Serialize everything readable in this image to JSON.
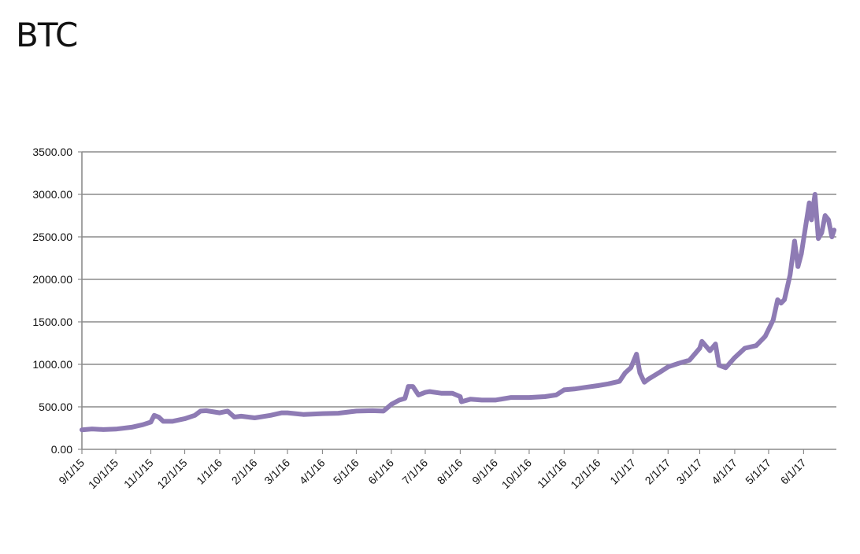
{
  "chart_data": {
    "type": "line",
    "title": "BTC",
    "xlabel": "",
    "ylabel": "",
    "ylim": [
      0,
      3500
    ],
    "yticks": [
      "0.00",
      "500.00",
      "1000.00",
      "1500.00",
      "2000.00",
      "2500.00",
      "3000.00",
      "3500.00"
    ],
    "xticks": [
      "9/1/15",
      "10/1/15",
      "11/1/15",
      "12/1/15",
      "1/1/16",
      "2/1/16",
      "3/1/16",
      "4/1/16",
      "5/1/16",
      "6/1/16",
      "7/1/16",
      "8/1/16",
      "9/1/16",
      "10/1/16",
      "11/1/16",
      "12/1/16",
      "1/1/17",
      "2/1/17",
      "3/1/17",
      "4/1/17",
      "5/1/17",
      "6/1/17"
    ],
    "grid": "horizontal",
    "series": [
      {
        "color": "#8e7bb4",
        "points": [
          [
            "2015-09-01",
            230
          ],
          [
            "2015-09-10",
            240
          ],
          [
            "2015-09-20",
            232
          ],
          [
            "2015-10-01",
            238
          ],
          [
            "2015-10-15",
            260
          ],
          [
            "2015-10-25",
            290
          ],
          [
            "2015-11-01",
            320
          ],
          [
            "2015-11-04",
            400
          ],
          [
            "2015-11-08",
            380
          ],
          [
            "2015-11-12",
            330
          ],
          [
            "2015-11-20",
            330
          ],
          [
            "2015-12-01",
            360
          ],
          [
            "2015-12-10",
            400
          ],
          [
            "2015-12-15",
            450
          ],
          [
            "2015-12-20",
            455
          ],
          [
            "2016-01-01",
            430
          ],
          [
            "2016-01-08",
            450
          ],
          [
            "2016-01-14",
            380
          ],
          [
            "2016-01-20",
            390
          ],
          [
            "2016-02-01",
            370
          ],
          [
            "2016-02-15",
            400
          ],
          [
            "2016-02-25",
            430
          ],
          [
            "2016-03-01",
            430
          ],
          [
            "2016-03-15",
            410
          ],
          [
            "2016-04-01",
            420
          ],
          [
            "2016-04-15",
            425
          ],
          [
            "2016-05-01",
            450
          ],
          [
            "2016-05-15",
            455
          ],
          [
            "2016-05-25",
            450
          ],
          [
            "2016-06-01",
            530
          ],
          [
            "2016-06-08",
            580
          ],
          [
            "2016-06-13",
            600
          ],
          [
            "2016-06-16",
            740
          ],
          [
            "2016-06-20",
            740
          ],
          [
            "2016-06-25",
            640
          ],
          [
            "2016-07-01",
            670
          ],
          [
            "2016-07-05",
            680
          ],
          [
            "2016-07-15",
            660
          ],
          [
            "2016-07-25",
            660
          ],
          [
            "2016-08-01",
            620
          ],
          [
            "2016-08-02",
            560
          ],
          [
            "2016-08-10",
            590
          ],
          [
            "2016-08-20",
            580
          ],
          [
            "2016-09-01",
            580
          ],
          [
            "2016-09-15",
            610
          ],
          [
            "2016-10-01",
            610
          ],
          [
            "2016-10-15",
            620
          ],
          [
            "2016-10-25",
            640
          ],
          [
            "2016-11-01",
            700
          ],
          [
            "2016-11-10",
            710
          ],
          [
            "2016-11-20",
            730
          ],
          [
            "2016-12-01",
            750
          ],
          [
            "2016-12-10",
            770
          ],
          [
            "2016-12-20",
            800
          ],
          [
            "2016-12-25",
            900
          ],
          [
            "2016-12-30",
            960
          ],
          [
            "2017-01-04",
            1120
          ],
          [
            "2017-01-07",
            900
          ],
          [
            "2017-01-11",
            790
          ],
          [
            "2017-01-15",
            830
          ],
          [
            "2017-01-25",
            910
          ],
          [
            "2017-02-01",
            970
          ],
          [
            "2017-02-10",
            1010
          ],
          [
            "2017-02-20",
            1050
          ],
          [
            "2017-03-01",
            1190
          ],
          [
            "2017-03-03",
            1270
          ],
          [
            "2017-03-10",
            1160
          ],
          [
            "2017-03-15",
            1240
          ],
          [
            "2017-03-18",
            990
          ],
          [
            "2017-03-24",
            960
          ],
          [
            "2017-04-01",
            1080
          ],
          [
            "2017-04-10",
            1190
          ],
          [
            "2017-04-20",
            1220
          ],
          [
            "2017-04-28",
            1330
          ],
          [
            "2017-05-05",
            1520
          ],
          [
            "2017-05-09",
            1760
          ],
          [
            "2017-05-12",
            1720
          ],
          [
            "2017-05-15",
            1760
          ],
          [
            "2017-05-20",
            2050
          ],
          [
            "2017-05-24",
            2450
          ],
          [
            "2017-05-27",
            2150
          ],
          [
            "2017-05-30",
            2300
          ],
          [
            "2017-06-06",
            2900
          ],
          [
            "2017-06-08",
            2700
          ],
          [
            "2017-06-11",
            3000
          ],
          [
            "2017-06-14",
            2480
          ],
          [
            "2017-06-17",
            2550
          ],
          [
            "2017-06-20",
            2750
          ],
          [
            "2017-06-23",
            2700
          ],
          [
            "2017-06-26",
            2500
          ],
          [
            "2017-06-28",
            2580
          ]
        ]
      }
    ]
  }
}
